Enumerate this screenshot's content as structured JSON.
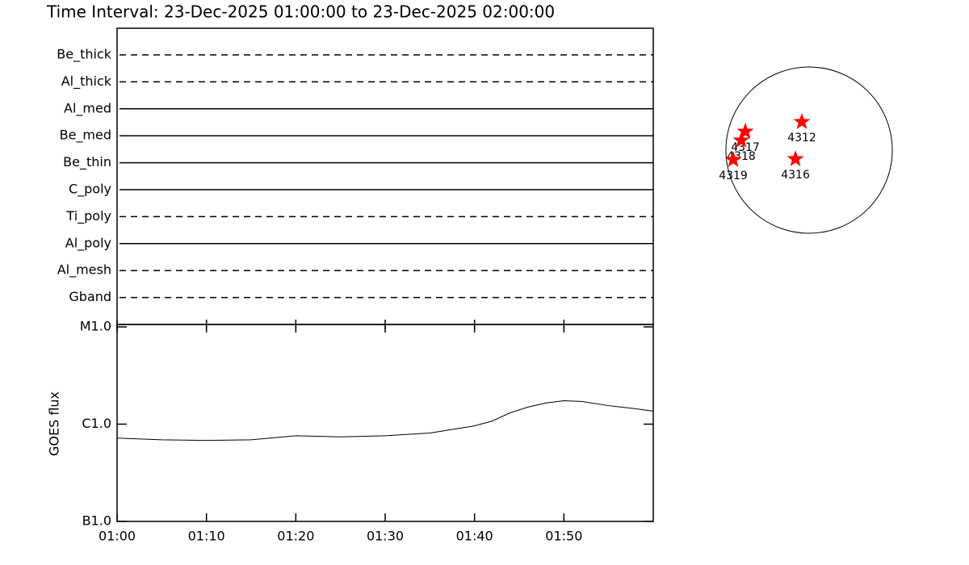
{
  "title": "Time Interval: 23-Dec-2025 01:00:00 to 23-Dec-2025 02:00:00",
  "filters": [
    {
      "name": "Be_thick",
      "style": "dashed"
    },
    {
      "name": "Al_thick",
      "style": "dashed"
    },
    {
      "name": "Al_med",
      "style": "solid"
    },
    {
      "name": "Be_med",
      "style": "solid"
    },
    {
      "name": "Be_thin",
      "style": "solid"
    },
    {
      "name": "C_poly",
      "style": "solid"
    },
    {
      "name": "Ti_poly",
      "style": "dashed"
    },
    {
      "name": "Al_poly",
      "style": "solid"
    },
    {
      "name": "Al_mesh",
      "style": "dashed"
    },
    {
      "name": "Gband",
      "style": "dashed"
    }
  ],
  "chart_data": {
    "type": "line",
    "y_label": "GOES flux",
    "log_scale": true,
    "color": "#000000",
    "x": [
      "01:00",
      "01:05",
      "01:10",
      "01:15",
      "01:20",
      "01:25",
      "01:30",
      "01:35",
      "01:40",
      "01:42",
      "01:44",
      "01:46",
      "01:48",
      "01:50",
      "01:52",
      "01:55",
      "01:58",
      "02:00"
    ],
    "values": [
      7.2e-07,
      6.9e-07,
      6.8e-07,
      6.9e-07,
      7.6e-07,
      7.4e-07,
      7.6e-07,
      8.1e-07,
      9.6e-07,
      1.08e-06,
      1.31e-06,
      1.5e-06,
      1.65e-06,
      1.74e-06,
      1.71e-06,
      1.55e-06,
      1.44e-06,
      1.36e-06
    ],
    "xlim": [
      "01:00",
      "02:00"
    ],
    "xticks": [
      "01:00",
      "01:10",
      "01:20",
      "01:30",
      "01:40",
      "01:50"
    ],
    "ylim": [
      1e-07,
      1e-05
    ],
    "yticks": [
      {
        "value": 1e-05,
        "label": "M1.0"
      },
      {
        "value": 1e-06,
        "label": "C1.0"
      },
      {
        "value": 1e-07,
        "label": "B1.0"
      }
    ]
  },
  "sun_map": {
    "type": "scatter",
    "color": "#ff0000",
    "xlim": [
      -960,
      960
    ],
    "ylim": [
      -960,
      960
    ],
    "regions": [
      {
        "label": "4312",
        "x": -84,
        "y": 326
      },
      {
        "label": "4317",
        "x": -736,
        "y": 214
      },
      {
        "label": "4318",
        "x": -783,
        "y": 112
      },
      {
        "label": "4319",
        "x": -876,
        "y": -112
      },
      {
        "label": "4316",
        "x": -158,
        "y": -103
      }
    ]
  }
}
